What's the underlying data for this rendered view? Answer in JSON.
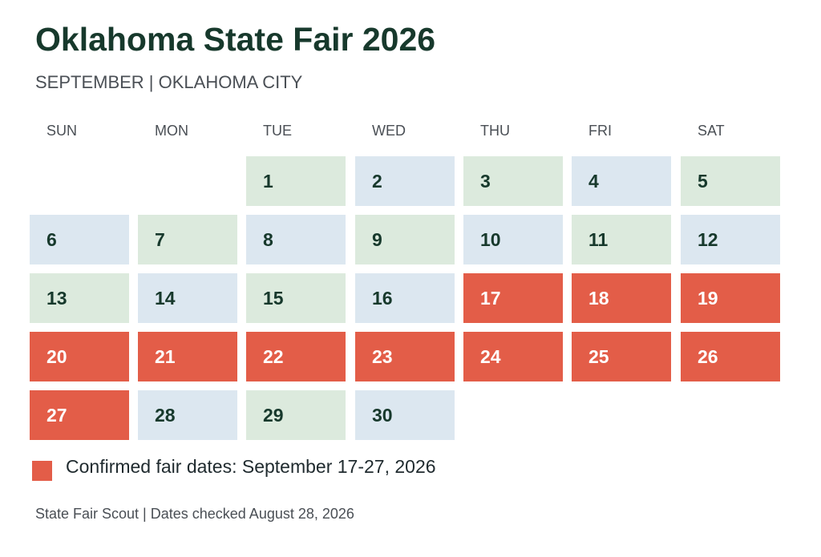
{
  "title": "Oklahoma State Fair 2026",
  "subtitle": "SEPTEMBER  |  OKLAHOMA CITY",
  "footer": "State Fair Scout | Dates checked August 28, 2026",
  "colors": {
    "blue": "#dce7f0",
    "green": "#dceadd",
    "highlight": "#e35d48",
    "title": "#17392c"
  },
  "chart_data": {
    "type": "table",
    "month": "SEPTEMBER",
    "weekdays": [
      "SUN",
      "MON",
      "TUE",
      "WED",
      "THU",
      "FRI",
      "SAT"
    ],
    "first_weekday_index": 2,
    "days_in_month": 30,
    "highlighted_days": [
      17,
      18,
      19,
      20,
      21,
      22,
      23,
      24,
      25,
      26,
      27
    ],
    "legend": {
      "label": "Confirmed fair dates: September 17-27, 2026"
    }
  }
}
